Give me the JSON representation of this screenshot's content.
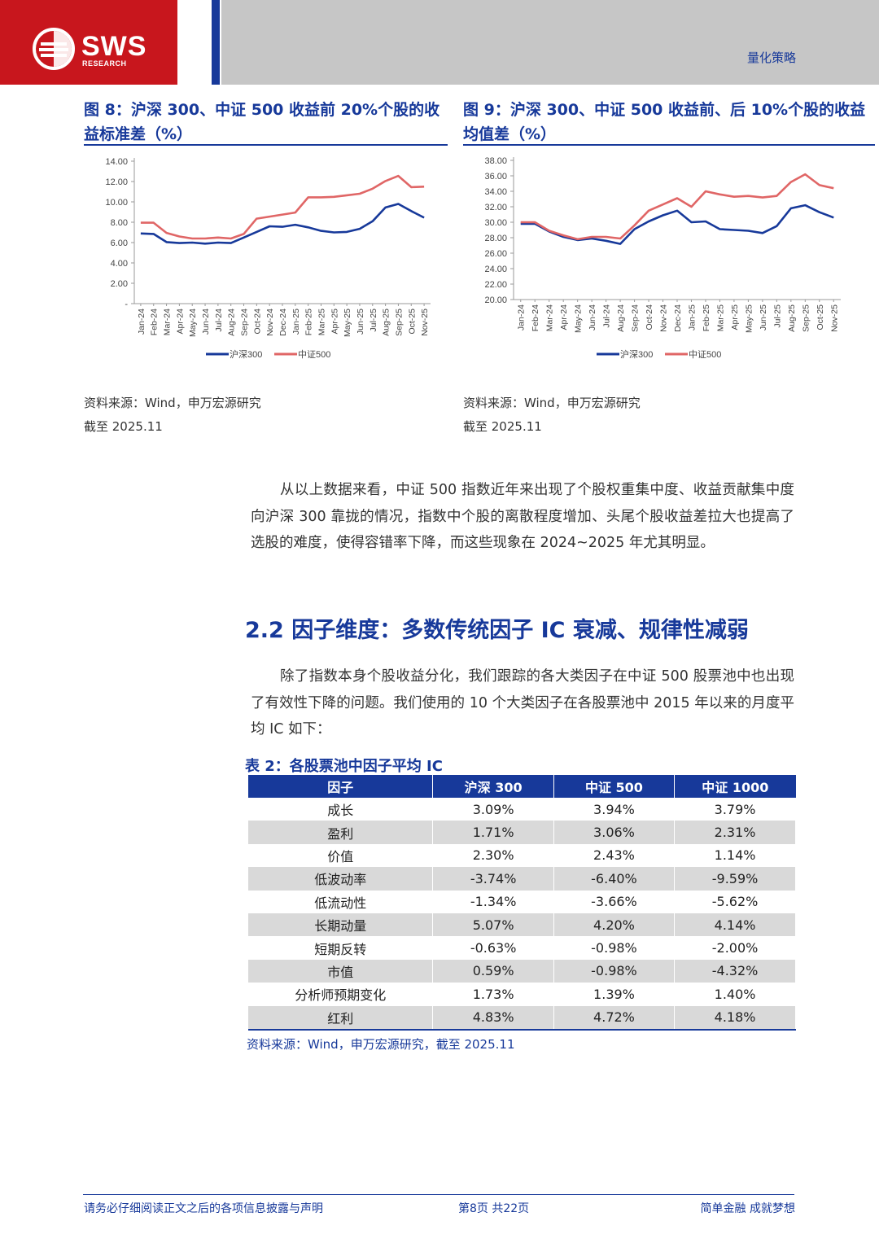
{
  "header": {
    "logo_text": "SWS",
    "logo_sub": "RESEARCH",
    "category": "量化策略"
  },
  "figure8": {
    "title": "图 8：沪深 300、中证 500 收益前 20%个股的收益标准差（%）",
    "source": "资料来源：Wind，申万宏源研究",
    "date": "截至 2025.11"
  },
  "figure9": {
    "title": "图 9：沪深 300、中证 500 收益前、后 10%个股的收益均值差（%）",
    "source": "资料来源：Wind，申万宏源研究",
    "date": "截至 2025.11"
  },
  "body": {
    "para1": "从以上数据来看，中证 500 指数近年来出现了个股权重集中度、收益贡献集中度向沪深 300 靠拢的情况，指数中个股的离散程度增加、头尾个股收益差拉大也提高了选股的难度，使得容错率下降，而这些现象在 2024~2025 年尤其明显。",
    "section_title": "2.2  因子维度：多数传统因子 IC 衰减、规律性减弱",
    "para2": "除了指数本身个股收益分化，我们跟踪的各大类因子在中证 500 股票池中也出现了有效性下降的问题。我们使用的 10 个大类因子在各股票池中 2015 年以来的月度平均 IC 如下："
  },
  "table": {
    "title": "表 2：各股票池中因子平均 IC",
    "headers": [
      "因子",
      "沪深 300",
      "中证 500",
      "中证 1000"
    ],
    "rows": [
      [
        "成长",
        "3.09%",
        "3.94%",
        "3.79%"
      ],
      [
        "盈利",
        "1.71%",
        "3.06%",
        "2.31%"
      ],
      [
        "价值",
        "2.30%",
        "2.43%",
        "1.14%"
      ],
      [
        "低波动率",
        "-3.74%",
        "-6.40%",
        "-9.59%"
      ],
      [
        "低流动性",
        "-1.34%",
        "-3.66%",
        "-5.62%"
      ],
      [
        "长期动量",
        "5.07%",
        "4.20%",
        "4.14%"
      ],
      [
        "短期反转",
        "-0.63%",
        "-0.98%",
        "-2.00%"
      ],
      [
        "市值",
        "0.59%",
        "-0.98%",
        "-4.32%"
      ],
      [
        "分析师预期变化",
        "1.73%",
        "1.39%",
        "1.40%"
      ],
      [
        "红利",
        "4.83%",
        "4.72%",
        "4.18%"
      ]
    ],
    "source": "资料来源：Wind，申万宏源研究，截至 2025.11"
  },
  "footer": {
    "left": "请务必仔细阅读正文之后的各项信息披露与声明",
    "center": "第8页 共22页",
    "right": "简单金融 成就梦想"
  },
  "colors": {
    "hs300": "#17399a",
    "zz500": "#e06666",
    "brand_red": "#c8161d",
    "brand_blue": "#17399a"
  },
  "chart_data": [
    {
      "type": "line",
      "title": "图 8：沪深 300、中证 500 收益前 20%个股的收益标准差（%）",
      "categories": [
        "Jan-24",
        "Feb-24",
        "Mar-24",
        "Apr-24",
        "May-24",
        "Jun-24",
        "Jul-24",
        "Aug-24",
        "Sep-24",
        "Oct-24",
        "Nov-24",
        "Dec-24",
        "Jan-25",
        "Feb-25",
        "Mar-25",
        "Apr-25",
        "May-25",
        "Jun-25",
        "Jul-25",
        "Aug-25",
        "Sep-25",
        "Oct-25",
        "Nov-25"
      ],
      "series": [
        {
          "name": "沪深300",
          "values": [
            6.9,
            6.85,
            6.05,
            5.95,
            6.0,
            5.9,
            6.0,
            5.95,
            6.5,
            7.05,
            7.6,
            7.55,
            7.75,
            7.5,
            7.15,
            7.0,
            7.05,
            7.35,
            8.1,
            9.45,
            9.8,
            9.1,
            8.45
          ]
        },
        {
          "name": "中证500",
          "values": [
            7.95,
            7.95,
            6.95,
            6.6,
            6.4,
            6.4,
            6.5,
            6.4,
            6.85,
            8.35,
            8.55,
            8.75,
            8.95,
            10.45,
            10.45,
            10.5,
            10.65,
            10.8,
            11.3,
            12.05,
            12.55,
            11.45,
            11.5
          ]
        }
      ],
      "yticks": [
        "-",
        "2.00",
        "4.00",
        "6.00",
        "8.00",
        "10.00",
        "12.00",
        "14.00"
      ],
      "ylim": [
        0,
        14
      ],
      "legend": [
        "沪深300",
        "中证500"
      ]
    },
    {
      "type": "line",
      "title": "图 9：沪深 300、中证 500 收益前、后 10%个股的收益均值差（%）",
      "categories": [
        "Jan-24",
        "Feb-24",
        "Mar-24",
        "Apr-24",
        "May-24",
        "Jun-24",
        "Jul-24",
        "Aug-24",
        "Sep-24",
        "Oct-24",
        "Nov-24",
        "Dec-24",
        "Jan-25",
        "Feb-25",
        "Mar-25",
        "Apr-25",
        "May-25",
        "Jun-25",
        "Jul-25",
        "Aug-25",
        "Sep-25",
        "Oct-25",
        "Nov-25"
      ],
      "series": [
        {
          "name": "沪深300",
          "values": [
            29.8,
            29.8,
            28.8,
            28.1,
            27.7,
            27.9,
            27.6,
            27.2,
            29.1,
            30.1,
            30.9,
            31.5,
            30.0,
            30.1,
            29.1,
            29.0,
            28.9,
            28.6,
            29.5,
            31.8,
            32.2,
            31.3,
            30.6
          ]
        },
        {
          "name": "中证500",
          "values": [
            30.0,
            30.0,
            28.9,
            28.3,
            27.8,
            28.1,
            28.1,
            27.9,
            29.6,
            31.5,
            32.3,
            33.1,
            32.0,
            34.0,
            33.6,
            33.3,
            33.4,
            33.2,
            33.4,
            35.2,
            36.2,
            34.8,
            34.4
          ]
        }
      ],
      "yticks": [
        "20.00",
        "22.00",
        "24.00",
        "26.00",
        "28.00",
        "30.00",
        "32.00",
        "34.00",
        "36.00",
        "38.00"
      ],
      "ylim": [
        20,
        38
      ],
      "legend": [
        "沪深300",
        "中证500"
      ]
    }
  ]
}
